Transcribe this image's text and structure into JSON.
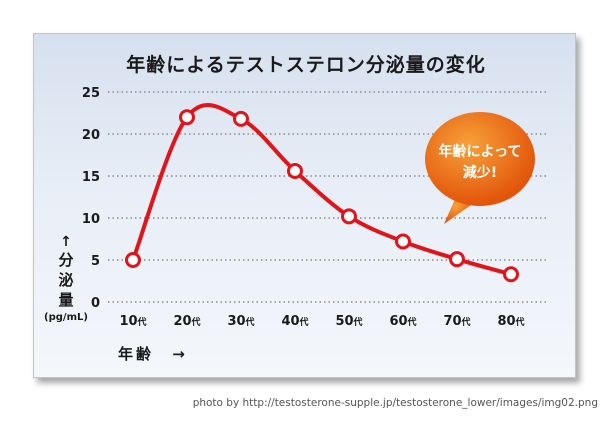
{
  "chart_data": {
    "type": "line",
    "title": "年齢によるテストステロン分泌量の変化",
    "categories": [
      "10",
      "20",
      "30",
      "40",
      "50",
      "60",
      "70",
      "80"
    ],
    "category_suffix": "代",
    "values": [
      5,
      22,
      21.8,
      15.6,
      10.2,
      7.2,
      5.1,
      3.3
    ],
    "yticks": [
      0,
      5,
      10,
      15,
      20,
      25
    ],
    "ylim": [
      0,
      25
    ],
    "ylabel": "分泌量",
    "ylabel_arrow": "↑",
    "yunit": "(pg/mL)",
    "xlabel": "年齢",
    "xlabel_arrow": "→",
    "grid": true,
    "callout": "年齢によって 減少!",
    "callout_line1": "年齢によって",
    "callout_line2": "減少!",
    "colors": {
      "line": "#e0141a",
      "marker_fill": "#ffffff",
      "grid": "#8a8a8a",
      "callout_light": "#f7a13a",
      "callout_dark": "#e2540a"
    }
  },
  "credit": "photo by http://testosterone-supple.jp/testosterone_lower/images/img02.png"
}
